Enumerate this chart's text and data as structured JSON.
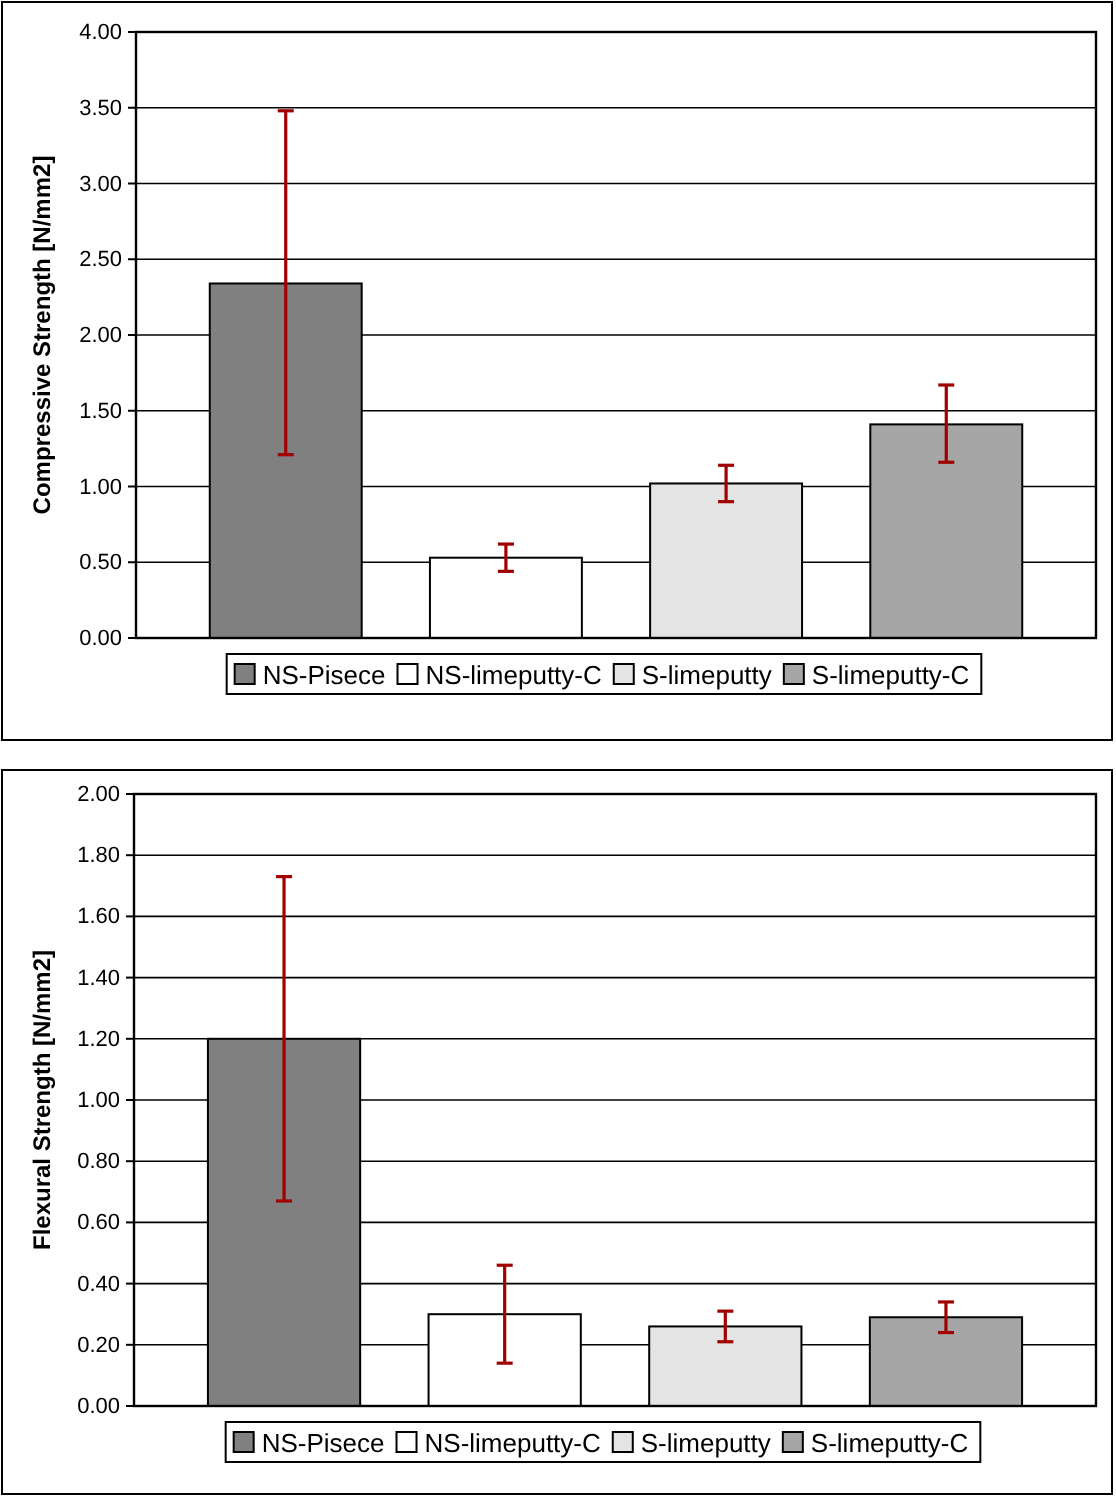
{
  "chart_data": [
    {
      "type": "bar",
      "ylabel": "Compressive Strength [N/mm2]",
      "categories": [
        null
      ],
      "series": [
        {
          "name": "NS-Pisece",
          "color": "#808080",
          "values": [
            2.34
          ],
          "errors": [
            [
              1.21,
              3.48
            ]
          ]
        },
        {
          "name": "NS-limeputty-C",
          "color": "#ffffff",
          "values": [
            0.53
          ],
          "errors": [
            [
              0.44,
              0.62
            ]
          ]
        },
        {
          "name": "S-limeputty",
          "color": "#e4e4e4",
          "values": [
            1.02
          ],
          "errors": [
            [
              0.9,
              1.14
            ]
          ]
        },
        {
          "name": "S-limeputty-C",
          "color": "#a6a6a6",
          "values": [
            1.41
          ],
          "errors": [
            [
              1.16,
              1.67
            ]
          ]
        }
      ],
      "ylim": [
        0,
        4
      ],
      "yticks": [
        {
          "value": 0,
          "label": "0.00"
        },
        {
          "value": 0.5,
          "label": "0.50"
        },
        {
          "value": 1,
          "label": "1.00"
        },
        {
          "value": 1.5,
          "label": "1.50"
        },
        {
          "value": 2,
          "label": "2.00"
        },
        {
          "value": 2.5,
          "label": "2.50"
        },
        {
          "value": 3,
          "label": "3.00"
        },
        {
          "value": 3.5,
          "label": "3.50"
        },
        {
          "value": 4,
          "label": "4.00"
        }
      ],
      "grid": "y",
      "legend": "bottom"
    },
    {
      "type": "bar",
      "ylabel": "Flexural Strength [N/mm2]",
      "categories": [
        null
      ],
      "series": [
        {
          "name": "NS-Pisece",
          "color": "#808080",
          "values": [
            1.2
          ],
          "errors": [
            [
              0.67,
              1.73
            ]
          ]
        },
        {
          "name": "NS-limeputty-C",
          "color": "#ffffff",
          "values": [
            0.3
          ],
          "errors": [
            [
              0.14,
              0.46
            ]
          ]
        },
        {
          "name": "S-limeputty",
          "color": "#e4e4e4",
          "values": [
            0.26
          ],
          "errors": [
            [
              0.21,
              0.31
            ]
          ]
        },
        {
          "name": "S-limeputty-C",
          "color": "#a6a6a6",
          "values": [
            0.29
          ],
          "errors": [
            [
              0.24,
              0.34
            ]
          ]
        }
      ],
      "ylim": [
        0,
        2
      ],
      "yticks": [
        {
          "value": 0,
          "label": "0.00"
        },
        {
          "value": 0.2,
          "label": "0.20"
        },
        {
          "value": 0.4,
          "label": "0.40"
        },
        {
          "value": 0.6,
          "label": "0.60"
        },
        {
          "value": 0.8,
          "label": "0.80"
        },
        {
          "value": 1,
          "label": "1.00"
        },
        {
          "value": 1.2,
          "label": "1.20"
        },
        {
          "value": 1.4,
          "label": "1.40"
        },
        {
          "value": 1.6,
          "label": "1.60"
        },
        {
          "value": 1.8,
          "label": "1.80"
        },
        {
          "value": 2,
          "label": "2.00"
        }
      ],
      "grid": "y",
      "legend": "bottom"
    }
  ]
}
